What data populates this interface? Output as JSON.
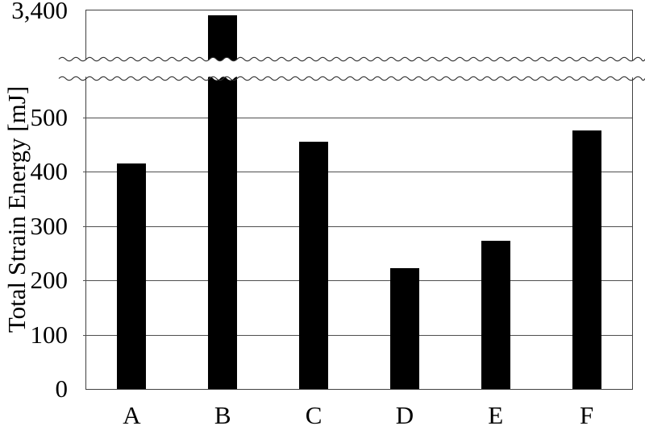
{
  "chart_data": {
    "type": "bar",
    "title": "",
    "categories": [
      "A",
      "B",
      "C",
      "D",
      "E",
      "F"
    ],
    "values": [
      415,
      3400,
      455,
      222,
      272,
      475
    ],
    "xlabel": "",
    "ylabel": "Total Strain Energy [mJ]",
    "y_ticks_lower": [
      0,
      100,
      200,
      300,
      400,
      500
    ],
    "y_tick_labels_lower": [
      "0",
      "100",
      "200",
      "300",
      "400",
      "500"
    ],
    "y_tick_label_top": "3,400",
    "axis_break": {
      "style": "double-wavy-line",
      "lower_section_max": 570,
      "top_tick_value": 3400,
      "broken_bar": "B"
    },
    "ylim_lower": [
      0,
      570
    ],
    "grid": true,
    "legend": false,
    "bar_color": "#000000",
    "background_color": "#ffffff",
    "line_color": "#414141",
    "gridline_color": "#4f4f4f",
    "text_color": "#000000"
  }
}
